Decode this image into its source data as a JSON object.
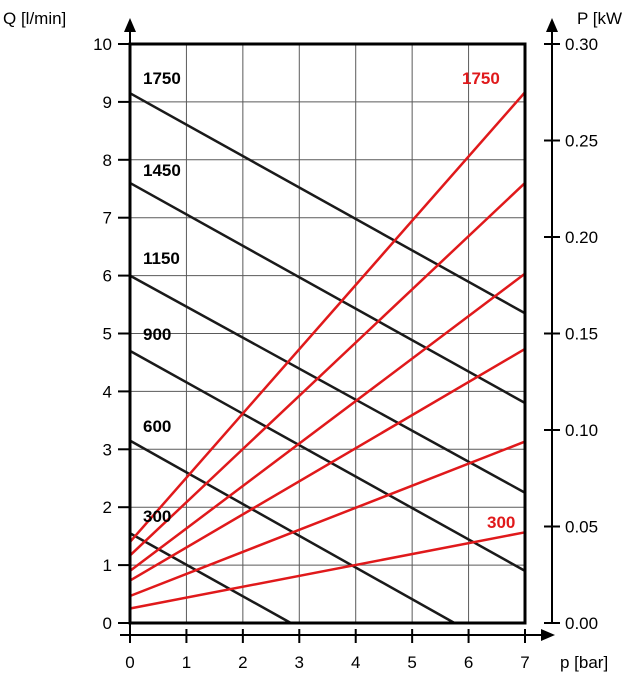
{
  "colors": {
    "flow_lines": "#1a1a1a",
    "power_lines": "#e0191b",
    "power_label": "#e0191b",
    "frame": "#000000",
    "grid": "#5a5a5a"
  },
  "chart_data": {
    "type": "line",
    "xlabel": "p [bar]",
    "ylabel": "Q [l/min]",
    "y2label": "P [kW",
    "xlim": [
      0,
      7
    ],
    "ylim": [
      0,
      10
    ],
    "y2lim": [
      0,
      0.3
    ],
    "grid": true,
    "x_ticks": [
      "0",
      "1",
      "2",
      "3",
      "4",
      "5",
      "6",
      "7"
    ],
    "y_ticks": [
      "0",
      "1",
      "2",
      "3",
      "4",
      "5",
      "6",
      "7",
      "8",
      "9",
      "10"
    ],
    "y2_ticks": [
      "0.00",
      "0.05",
      "0.10",
      "0.15",
      "0.20",
      "0.25",
      "0.30"
    ],
    "flow_series": [
      {
        "name": "1750",
        "points": [
          [
            0,
            9.15
          ],
          [
            7,
            5.35
          ]
        ]
      },
      {
        "name": "1450",
        "points": [
          [
            0,
            7.6
          ],
          [
            7,
            3.8
          ]
        ]
      },
      {
        "name": "1150",
        "points": [
          [
            0,
            6.0
          ],
          [
            7,
            2.25
          ]
        ]
      },
      {
        "name": "900",
        "points": [
          [
            0,
            4.7
          ],
          [
            7,
            0.9
          ]
        ]
      },
      {
        "name": "600",
        "points": [
          [
            0,
            3.15
          ],
          [
            5.75,
            0
          ]
        ]
      },
      {
        "name": "300",
        "points": [
          [
            0,
            1.55
          ],
          [
            2.85,
            0
          ]
        ]
      }
    ],
    "power_series": [
      {
        "name": "1750",
        "points": [
          [
            0,
            0.042
          ],
          [
            7,
            0.275
          ]
        ]
      },
      {
        "name": "1450",
        "points": [
          [
            0,
            0.035
          ],
          [
            7,
            0.228
          ]
        ]
      },
      {
        "points": [
          [
            0,
            0.027
          ],
          [
            7,
            0.181
          ]
        ]
      },
      {
        "points": [
          [
            0,
            0.022
          ],
          [
            7,
            0.142
          ]
        ]
      },
      {
        "points": [
          [
            0,
            0.014
          ],
          [
            7,
            0.094
          ]
        ]
      },
      {
        "name": "300",
        "points": [
          [
            0,
            0.0075
          ],
          [
            7,
            0.047
          ]
        ]
      }
    ],
    "flow_labels": [
      "1750",
      "1450",
      "1150",
      "900",
      "600",
      "300"
    ],
    "power_labels": [
      "1750",
      "300"
    ]
  }
}
